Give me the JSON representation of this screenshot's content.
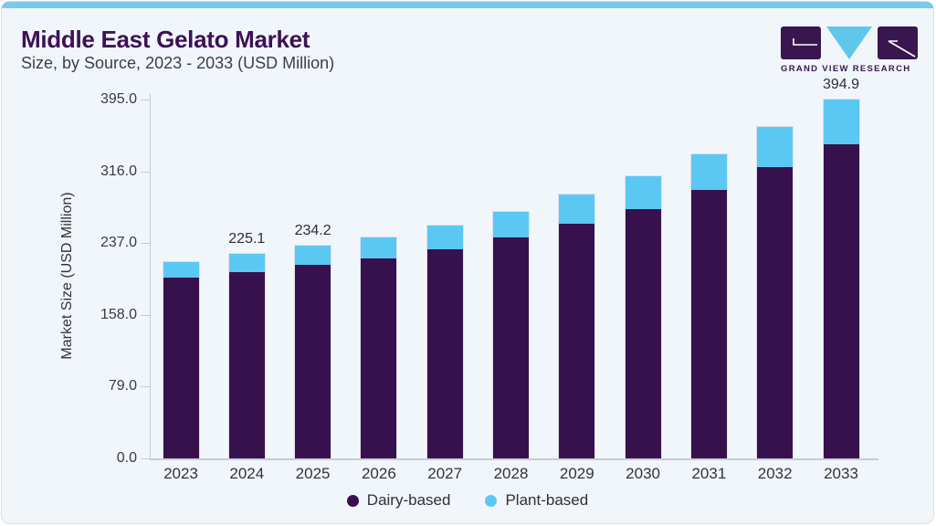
{
  "header": {
    "title": "Middle East Gelato Market",
    "subtitle": "Size, by Source, 2023 - 2033 (USD Million)"
  },
  "logo": {
    "text": "GRAND VIEW RESEARCH"
  },
  "colors": {
    "accent_bar": "#7CC7EC",
    "brand_purple": "#3A1650",
    "dairy": "#37114D",
    "plant": "#5BC8F4"
  },
  "chart_data": {
    "type": "bar",
    "stacked": true,
    "title": "Middle East Gelato Market Size, by Source, 2023 - 2033 (USD Million)",
    "categories": [
      "2023",
      "2024",
      "2025",
      "2026",
      "2027",
      "2028",
      "2029",
      "2030",
      "2031",
      "2032",
      "2033"
    ],
    "series": [
      {
        "name": "Dairy-based",
        "color": "#37114D",
        "values": [
          198.8,
          205.1,
          213.1,
          219.9,
          230.5,
          243.1,
          257.9,
          274.8,
          295.9,
          320.2,
          345.3
        ]
      },
      {
        "name": "Plant-based",
        "color": "#5BC8F4",
        "values": [
          16.9,
          20.0,
          21.1,
          23.2,
          25.3,
          28.5,
          32.7,
          35.9,
          39.0,
          44.3,
          49.6
        ]
      }
    ],
    "totals": [
      215.7,
      225.1,
      234.2,
      243.1,
      255.8,
      271.6,
      290.6,
      310.7,
      334.9,
      364.5,
      394.9
    ],
    "annotations": [
      {
        "year": "2024",
        "label": "225.1"
      },
      {
        "year": "2025",
        "label": "234.2"
      },
      {
        "year": "2033",
        "label": "394.9"
      }
    ],
    "xlabel": "",
    "ylabel": "Market Size (USD Million)",
    "y_tick_labels": [
      "0.0",
      "79.0",
      "158.0",
      "237.0",
      "316.0",
      "395.0"
    ],
    "y_ticks": [
      0,
      79,
      158,
      237,
      316,
      395
    ],
    "ylim": [
      0,
      395
    ],
    "grid": false,
    "legend_position": "bottom"
  }
}
